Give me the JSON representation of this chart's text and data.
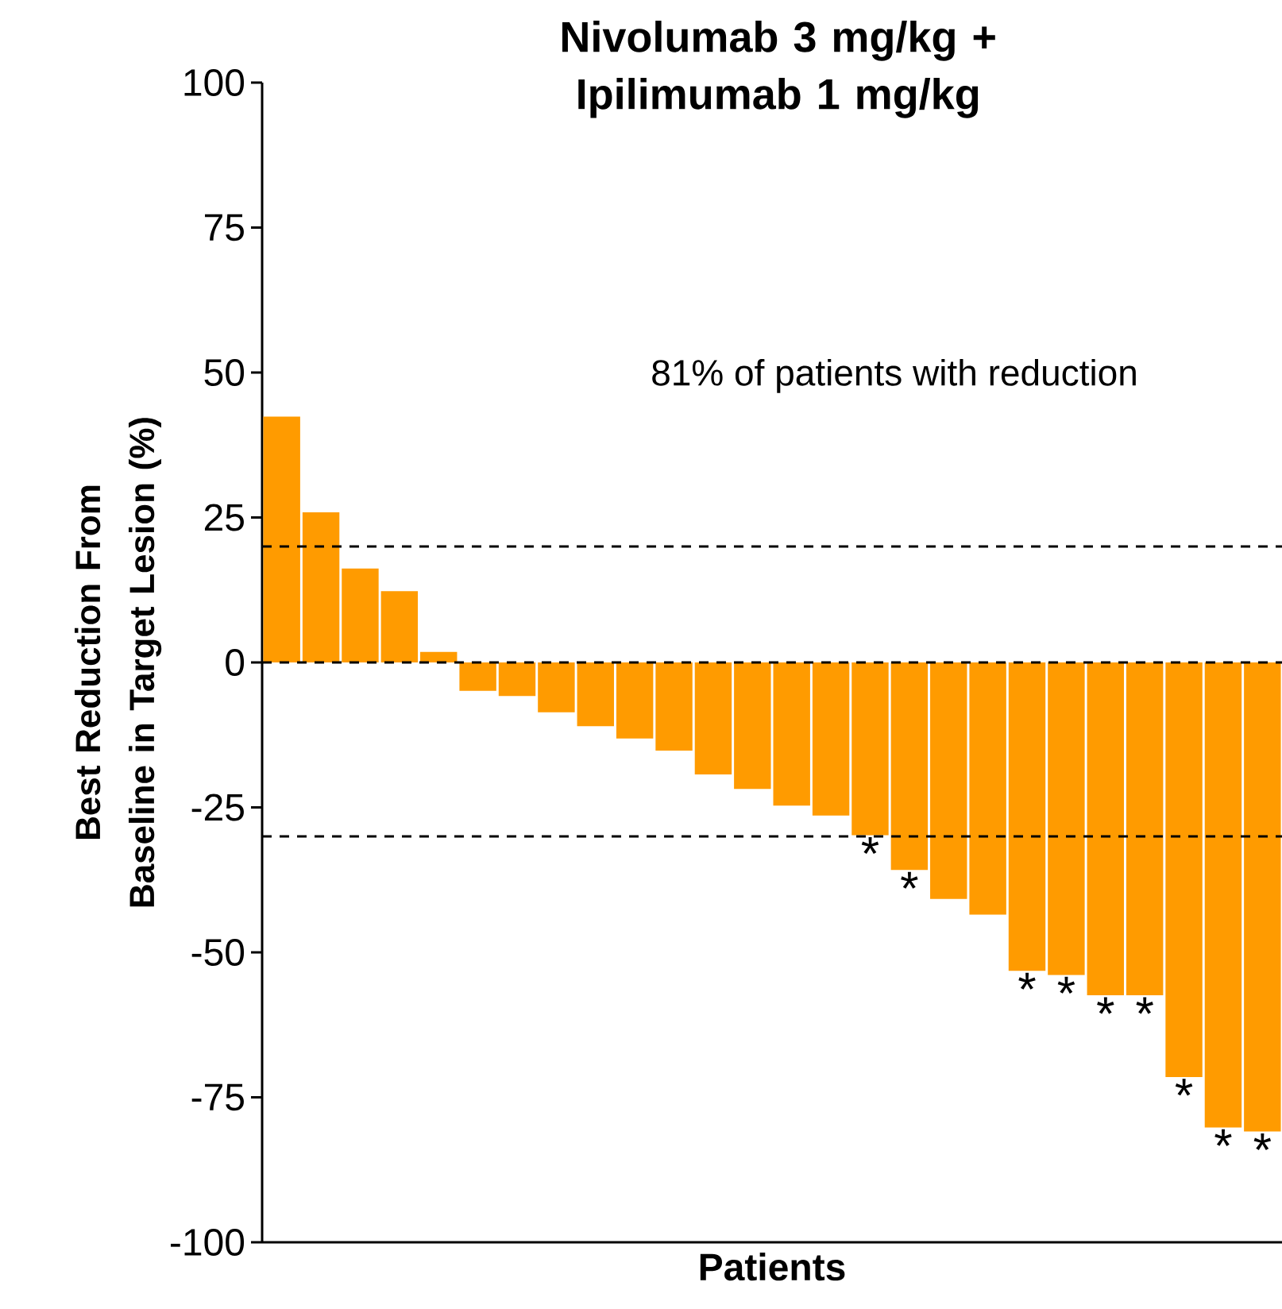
{
  "chart_data": {
    "type": "bar",
    "title": "Nivolumab 3 mg/kg + Ipilimumab 1 mg/kg",
    "xlabel": "Patients",
    "ylabel": "Best Reduction From Baseline in Target Lesion (%)",
    "annotations": [
      "81% of patients with reduction"
    ],
    "categories": [
      null,
      null,
      null,
      null,
      null,
      null,
      null,
      null,
      null,
      null,
      null,
      null,
      null,
      null,
      null,
      null,
      null,
      null,
      null,
      null,
      null,
      null,
      null,
      null,
      null,
      null
    ],
    "values": [
      42.4,
      25.9,
      16.2,
      12.3,
      1.8,
      -4.9,
      -5.8,
      -8.6,
      -11.0,
      -13.1,
      -15.2,
      -19.3,
      -21.8,
      -24.7,
      -26.4,
      -29.8,
      -35.8,
      -40.8,
      -43.5,
      -53.2,
      -53.9,
      -57.4,
      -57.4,
      -71.5,
      -80.2,
      -80.9
    ],
    "value_labels": [
      null,
      null,
      null,
      null,
      null,
      null,
      null,
      null,
      null,
      null,
      null,
      null,
      null,
      null,
      null,
      "*",
      "*",
      null,
      null,
      "*",
      "*",
      "*",
      "*",
      "*",
      "*",
      "*"
    ],
    "color": "#ff9b00",
    "ylim": [
      -100,
      100
    ],
    "yticks": [
      -100,
      -75,
      -50,
      -25,
      0,
      25,
      50,
      75,
      100
    ],
    "ref_lines": [
      {
        "axis": "y",
        "value": 20,
        "line_style": "dashed"
      },
      {
        "axis": "y",
        "value": 0,
        "line_style": "dashed"
      },
      {
        "axis": "y",
        "value": -30,
        "line_style": "dashed"
      }
    ]
  }
}
